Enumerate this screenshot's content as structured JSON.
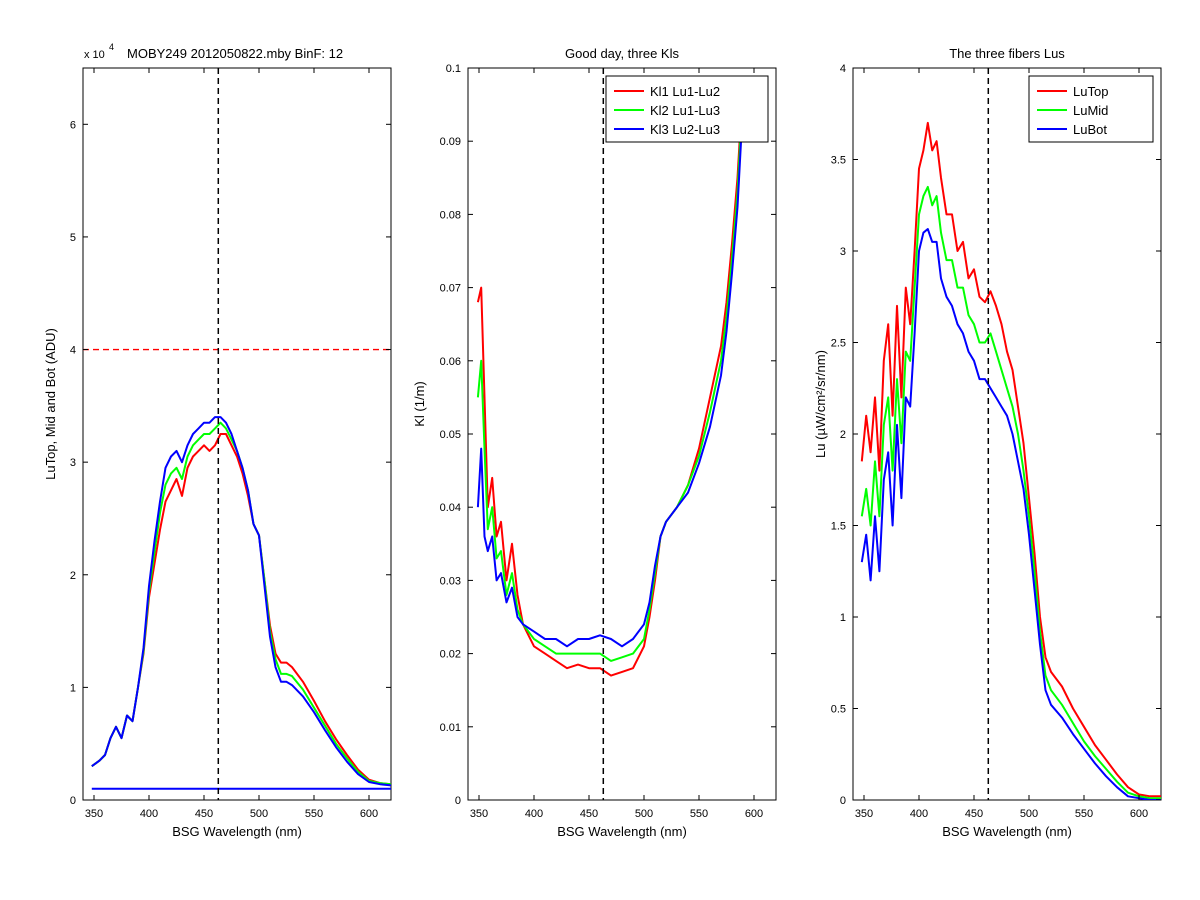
{
  "colors": {
    "red": "#ff0000",
    "green": "#00ff00",
    "blue": "#0000ff",
    "ref_black": "#000000"
  },
  "chart_data": [
    {
      "type": "line",
      "title": "MOBY249  2012050822.mby BinF: 12",
      "exponent_label": "x 10",
      "exponent_power": "4",
      "xlabel": "BSG Wavelength (nm)",
      "ylabel": "LuTop, Mid and Bot (ADU)",
      "xlim": [
        340,
        620
      ],
      "ylim": [
        0,
        6.5
      ],
      "y_scale_note": "values in units of 10^4 ADU",
      "xticks": [
        350,
        400,
        450,
        500,
        550,
        600
      ],
      "yticks": [
        0,
        1,
        2,
        3,
        4,
        5,
        6
      ],
      "xtick_labels": [
        "350",
        "400",
        "450",
        "500",
        "550",
        "600"
      ],
      "ytick_labels": [
        "0",
        "1",
        "2",
        "3",
        "4",
        "5",
        "6"
      ],
      "vline": 463,
      "hline": {
        "y": 4.0,
        "color": "#ff0000",
        "style": "dashed"
      },
      "baseline": {
        "y": 0.1,
        "color": "#0000ff"
      },
      "x": [
        348,
        355,
        360,
        365,
        370,
        375,
        380,
        385,
        390,
        395,
        400,
        405,
        410,
        415,
        420,
        425,
        430,
        435,
        440,
        445,
        450,
        455,
        460,
        465,
        470,
        475,
        480,
        485,
        490,
        495,
        500,
        505,
        510,
        515,
        520,
        525,
        530,
        540,
        550,
        560,
        570,
        580,
        590,
        600,
        610,
        620
      ],
      "series": [
        {
          "color": "#ff0000",
          "values": [
            0.3,
            0.35,
            0.4,
            0.55,
            0.65,
            0.55,
            0.75,
            0.7,
            1.0,
            1.3,
            1.8,
            2.1,
            2.4,
            2.65,
            2.75,
            2.85,
            2.7,
            2.95,
            3.05,
            3.1,
            3.15,
            3.1,
            3.15,
            3.25,
            3.25,
            3.15,
            3.05,
            2.9,
            2.7,
            2.45,
            2.35,
            1.95,
            1.55,
            1.3,
            1.22,
            1.22,
            1.18,
            1.05,
            0.88,
            0.7,
            0.54,
            0.4,
            0.27,
            0.18,
            0.15,
            0.14
          ]
        },
        {
          "color": "#00ff00",
          "values": [
            0.3,
            0.35,
            0.4,
            0.55,
            0.65,
            0.55,
            0.75,
            0.7,
            1.0,
            1.32,
            1.85,
            2.2,
            2.55,
            2.8,
            2.9,
            2.95,
            2.85,
            3.05,
            3.15,
            3.2,
            3.25,
            3.25,
            3.3,
            3.35,
            3.3,
            3.2,
            3.1,
            2.95,
            2.75,
            2.45,
            2.35,
            1.95,
            1.5,
            1.25,
            1.12,
            1.12,
            1.1,
            0.98,
            0.82,
            0.66,
            0.5,
            0.37,
            0.25,
            0.17,
            0.15,
            0.14
          ]
        },
        {
          "color": "#0000ff",
          "values": [
            0.3,
            0.35,
            0.4,
            0.55,
            0.65,
            0.55,
            0.75,
            0.7,
            1.0,
            1.35,
            1.9,
            2.3,
            2.65,
            2.95,
            3.05,
            3.1,
            3.0,
            3.15,
            3.25,
            3.3,
            3.35,
            3.35,
            3.4,
            3.4,
            3.35,
            3.25,
            3.1,
            2.95,
            2.75,
            2.45,
            2.35,
            1.9,
            1.45,
            1.18,
            1.05,
            1.05,
            1.02,
            0.92,
            0.78,
            0.62,
            0.47,
            0.34,
            0.23,
            0.16,
            0.14,
            0.13
          ]
        }
      ]
    },
    {
      "type": "line",
      "title": "Good day, three Kls",
      "xlabel": "BSG Wavelength (nm)",
      "ylabel": "Kl (1/m)",
      "xlim": [
        340,
        620
      ],
      "ylim": [
        0,
        0.1
      ],
      "xticks": [
        350,
        400,
        450,
        500,
        550,
        600
      ],
      "yticks": [
        0,
        0.01,
        0.02,
        0.03,
        0.04,
        0.05,
        0.06,
        0.07,
        0.08,
        0.09,
        0.1
      ],
      "xtick_labels": [
        "350",
        "400",
        "450",
        "500",
        "550",
        "600"
      ],
      "ytick_labels": [
        "0",
        "0.01",
        "0.02",
        "0.03",
        "0.04",
        "0.05",
        "0.06",
        "0.07",
        "0.08",
        "0.09",
        "0.1"
      ],
      "vline": 463,
      "legend": {
        "position": "top-right",
        "entries": [
          "Kl1 Lu1-Lu2",
          "Kl2 Lu1-Lu3",
          "Kl3 Lu2-Lu3"
        ]
      },
      "x": [
        349,
        352,
        355,
        358,
        362,
        366,
        370,
        375,
        380,
        385,
        390,
        400,
        410,
        420,
        430,
        440,
        450,
        460,
        470,
        480,
        490,
        500,
        505,
        510,
        515,
        520,
        530,
        540,
        550,
        560,
        570,
        575,
        580,
        585,
        590
      ],
      "series": [
        {
          "name": "Kl1 Lu1-Lu2",
          "color": "#ff0000",
          "values": [
            0.068,
            0.07,
            0.055,
            0.04,
            0.044,
            0.036,
            0.038,
            0.03,
            0.035,
            0.028,
            0.024,
            0.021,
            0.02,
            0.019,
            0.018,
            0.0185,
            0.018,
            0.018,
            0.017,
            0.0175,
            0.018,
            0.021,
            0.025,
            0.03,
            0.036,
            0.038,
            0.04,
            0.043,
            0.048,
            0.055,
            0.062,
            0.068,
            0.076,
            0.085,
            0.098
          ]
        },
        {
          "name": "Kl2 Lu1-Lu3",
          "color": "#00ff00",
          "values": [
            0.055,
            0.06,
            0.048,
            0.037,
            0.04,
            0.033,
            0.034,
            0.028,
            0.031,
            0.026,
            0.024,
            0.022,
            0.021,
            0.02,
            0.02,
            0.02,
            0.02,
            0.02,
            0.019,
            0.0195,
            0.02,
            0.022,
            0.026,
            0.031,
            0.036,
            0.038,
            0.04,
            0.043,
            0.047,
            0.053,
            0.06,
            0.066,
            0.074,
            0.083,
            0.097
          ]
        },
        {
          "name": "Kl3 Lu2-Lu3",
          "color": "#0000ff",
          "values": [
            0.04,
            0.048,
            0.036,
            0.034,
            0.036,
            0.03,
            0.031,
            0.027,
            0.029,
            0.025,
            0.024,
            0.023,
            0.022,
            0.022,
            0.021,
            0.022,
            0.022,
            0.0225,
            0.022,
            0.021,
            0.022,
            0.024,
            0.027,
            0.032,
            0.036,
            0.038,
            0.04,
            0.042,
            0.046,
            0.051,
            0.058,
            0.064,
            0.072,
            0.081,
            0.095
          ]
        }
      ]
    },
    {
      "type": "line",
      "title": "The three fibers Lus",
      "xlabel": "BSG Wavelength (nm)",
      "ylabel": "Lu (µW/cm²/sr/nm)",
      "xlim": [
        340,
        620
      ],
      "ylim": [
        0,
        4
      ],
      "xticks": [
        350,
        400,
        450,
        500,
        550,
        600
      ],
      "yticks": [
        0,
        0.5,
        1,
        1.5,
        2,
        2.5,
        3,
        3.5,
        4
      ],
      "xtick_labels": [
        "350",
        "400",
        "450",
        "500",
        "550",
        "600"
      ],
      "ytick_labels": [
        "0",
        "0.5",
        "1",
        "1.5",
        "2",
        "2.5",
        "3",
        "3.5",
        "4"
      ],
      "vline": 463,
      "legend": {
        "position": "top-right",
        "entries": [
          "LuTop",
          "LuMid",
          "LuBot"
        ]
      },
      "x": [
        348,
        352,
        356,
        360,
        364,
        368,
        372,
        376,
        380,
        384,
        388,
        392,
        396,
        400,
        404,
        408,
        412,
        416,
        420,
        425,
        430,
        435,
        440,
        445,
        450,
        455,
        460,
        465,
        470,
        475,
        480,
        485,
        490,
        495,
        500,
        505,
        510,
        515,
        520,
        530,
        540,
        550,
        560,
        570,
        580,
        590,
        600,
        610,
        620
      ],
      "series": [
        {
          "name": "LuTop",
          "color": "#ff0000",
          "values": [
            1.85,
            2.1,
            1.9,
            2.2,
            1.8,
            2.4,
            2.6,
            2.1,
            2.7,
            2.2,
            2.8,
            2.6,
            3.0,
            3.45,
            3.55,
            3.7,
            3.55,
            3.6,
            3.4,
            3.2,
            3.2,
            3.0,
            3.05,
            2.85,
            2.9,
            2.75,
            2.72,
            2.78,
            2.7,
            2.6,
            2.45,
            2.35,
            2.15,
            1.95,
            1.65,
            1.35,
            1.0,
            0.78,
            0.7,
            0.62,
            0.5,
            0.4,
            0.3,
            0.22,
            0.14,
            0.07,
            0.03,
            0.02,
            0.02
          ]
        },
        {
          "name": "LuMid",
          "color": "#00ff00",
          "values": [
            1.55,
            1.7,
            1.5,
            1.85,
            1.55,
            2.05,
            2.2,
            1.8,
            2.3,
            1.95,
            2.45,
            2.4,
            2.8,
            3.2,
            3.3,
            3.35,
            3.25,
            3.3,
            3.1,
            2.95,
            2.95,
            2.8,
            2.8,
            2.65,
            2.6,
            2.5,
            2.5,
            2.55,
            2.45,
            2.35,
            2.25,
            2.15,
            2.0,
            1.8,
            1.55,
            1.25,
            0.92,
            0.68,
            0.6,
            0.52,
            0.42,
            0.32,
            0.24,
            0.17,
            0.1,
            0.04,
            0.02,
            0.01,
            0.01
          ]
        },
        {
          "name": "LuBot",
          "color": "#0000ff",
          "values": [
            1.3,
            1.45,
            1.2,
            1.55,
            1.25,
            1.75,
            1.9,
            1.5,
            2.05,
            1.65,
            2.2,
            2.15,
            2.55,
            3.0,
            3.1,
            3.12,
            3.05,
            3.05,
            2.85,
            2.75,
            2.7,
            2.6,
            2.55,
            2.45,
            2.4,
            2.3,
            2.3,
            2.25,
            2.2,
            2.15,
            2.1,
            2.0,
            1.85,
            1.7,
            1.45,
            1.15,
            0.85,
            0.6,
            0.52,
            0.45,
            0.36,
            0.28,
            0.2,
            0.13,
            0.07,
            0.02,
            0.01,
            0.0,
            0.0
          ]
        }
      ]
    }
  ]
}
